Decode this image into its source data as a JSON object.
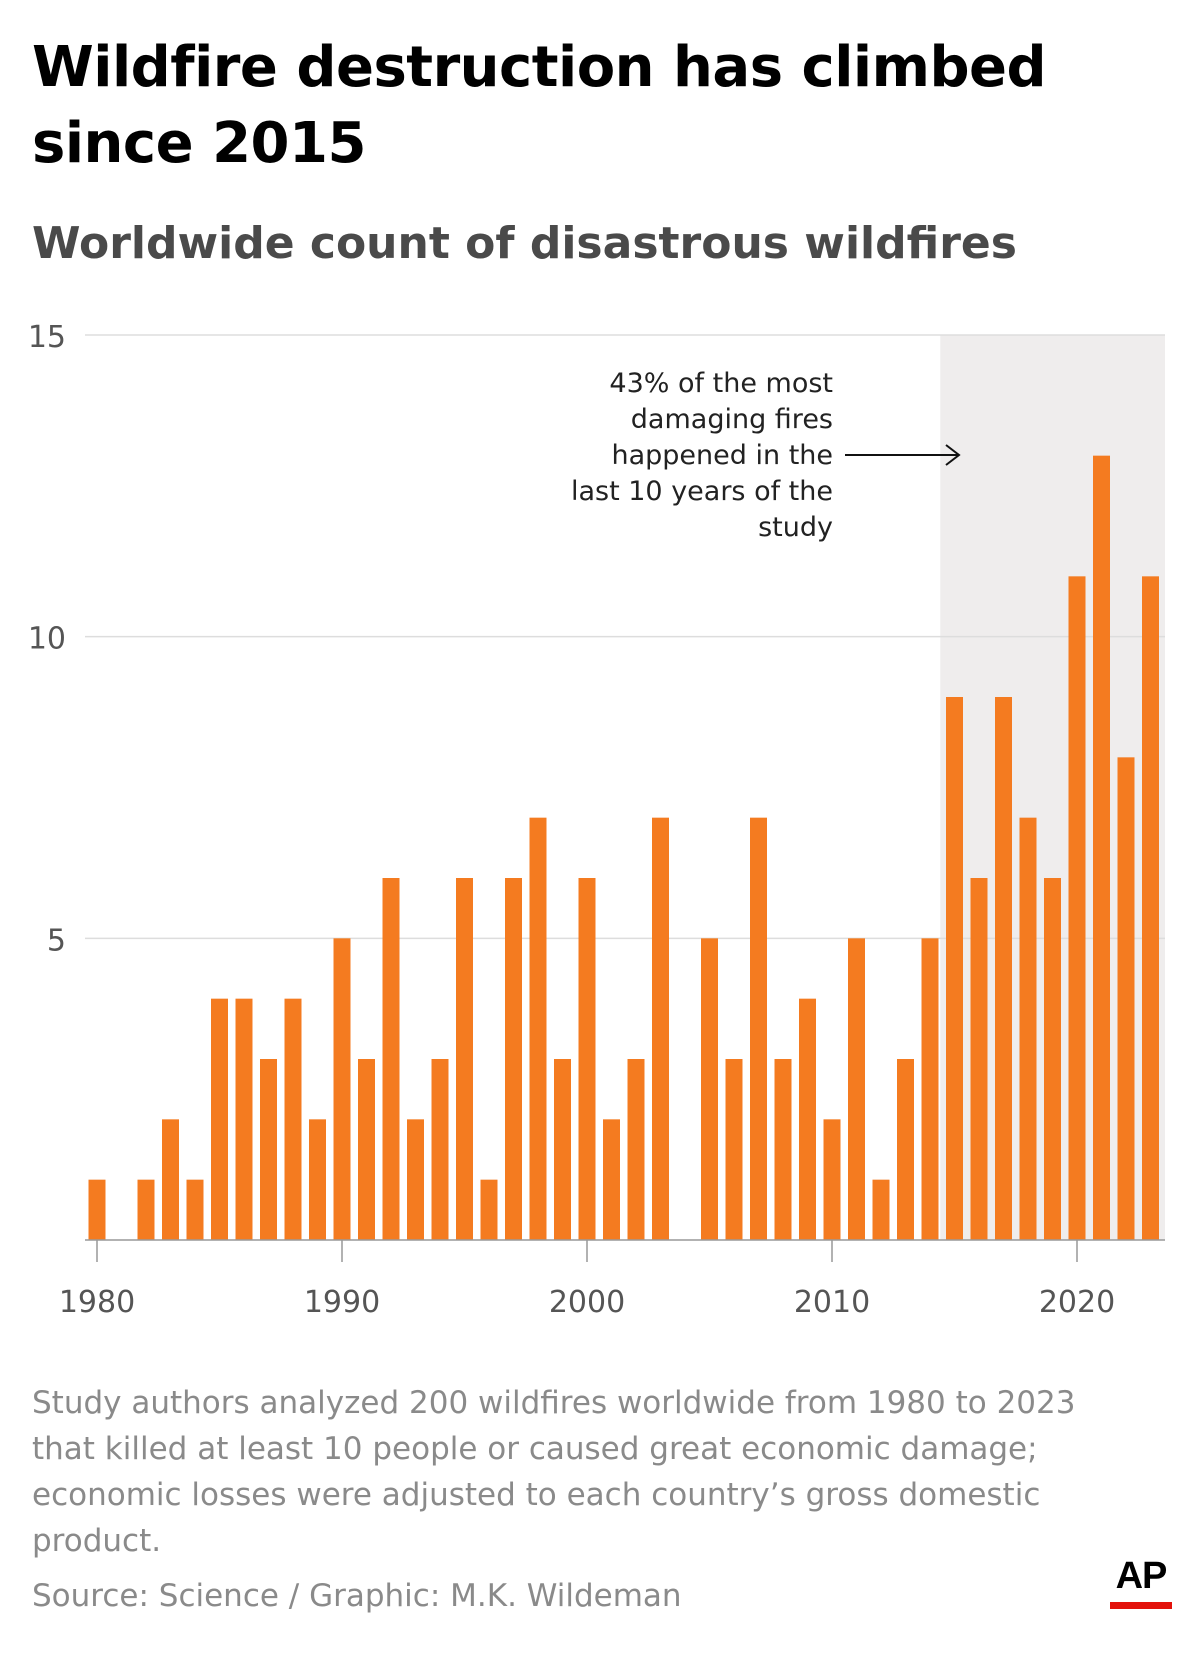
{
  "title": "Wildfire destruction has climbed since 2015",
  "subtitle": "Worldwide count of disastrous wildfires",
  "note": "Study authors analyzed 200 wildfires worldwide from 1980 to 2023 that killed at least 10 people or caused great economic damage; economic losses were adjusted to each country’s gross domestic product.",
  "source": "Source: Science / Graphic: M.K. Wildeman",
  "logo": "AP",
  "colors": {
    "bar": "#f47b20",
    "highlight": "#efeded",
    "grid": "#dddddd",
    "axis": "#999999",
    "logo_bar": "#e3120b"
  },
  "chart_data": {
    "type": "bar",
    "title": "Wildfire destruction has climbed since 2015",
    "subtitle": "Worldwide count of disastrous wildfires",
    "x": [
      1980,
      1981,
      1982,
      1983,
      1984,
      1985,
      1986,
      1987,
      1988,
      1989,
      1990,
      1991,
      1992,
      1993,
      1994,
      1995,
      1996,
      1997,
      1998,
      1999,
      2000,
      2001,
      2002,
      2003,
      2004,
      2005,
      2006,
      2007,
      2008,
      2009,
      2010,
      2011,
      2012,
      2013,
      2014,
      2015,
      2016,
      2017,
      2018,
      2019,
      2020,
      2021,
      2022,
      2023
    ],
    "values": [
      1,
      0,
      1,
      2,
      1,
      4,
      4,
      3,
      4,
      2,
      5,
      3,
      6,
      2,
      3,
      6,
      1,
      6,
      7,
      3,
      6,
      2,
      3,
      7,
      0,
      5,
      3,
      7,
      3,
      4,
      2,
      5,
      1,
      3,
      5,
      9,
      6,
      9,
      7,
      6,
      11,
      13,
      8,
      11
    ],
    "ylim": [
      0,
      15
    ],
    "yticks": [
      5,
      10,
      15
    ],
    "xticks": [
      1980,
      1990,
      2000,
      2010,
      2020
    ],
    "grid": true,
    "highlight_range": [
      2014,
      2023
    ],
    "annotation": {
      "lines": [
        "43% of the most",
        "damaging fires",
        "happened in the",
        "last 10 years of the",
        "study"
      ],
      "arrow": "right"
    }
  }
}
